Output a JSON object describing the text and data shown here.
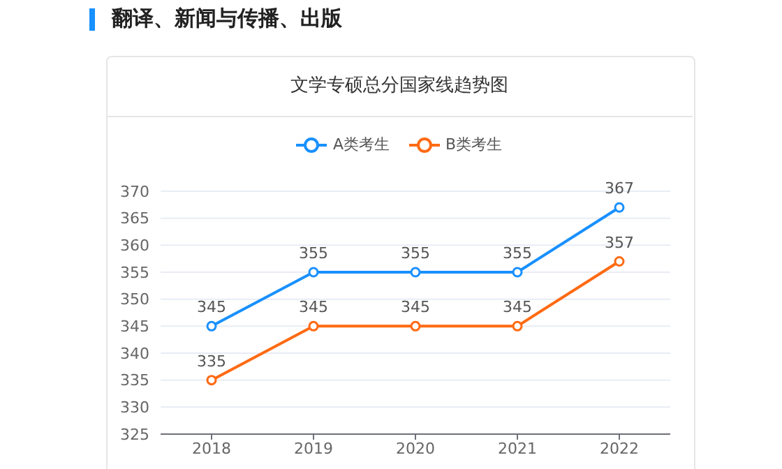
{
  "chart_data": {
    "type": "line",
    "title": "翻译、新闻与传播、出版",
    "subtitle": "文学专硕总分国家线趋势图",
    "categories": [
      "2018",
      "2019",
      "2020",
      "2021",
      "2022"
    ],
    "series": [
      {
        "name": "A类考生",
        "color": "#1890ff",
        "values": [
          345,
          355,
          355,
          355,
          367
        ]
      },
      {
        "name": "B类考生",
        "color": "#ff6a13",
        "values": [
          335,
          345,
          345,
          345,
          357
        ]
      }
    ],
    "ylim": [
      325,
      370
    ],
    "yticks": [
      325,
      330,
      335,
      340,
      345,
      350,
      355,
      360,
      365,
      370
    ],
    "grid": "y",
    "legend": "top",
    "marker": "circle",
    "data_labels": true
  }
}
